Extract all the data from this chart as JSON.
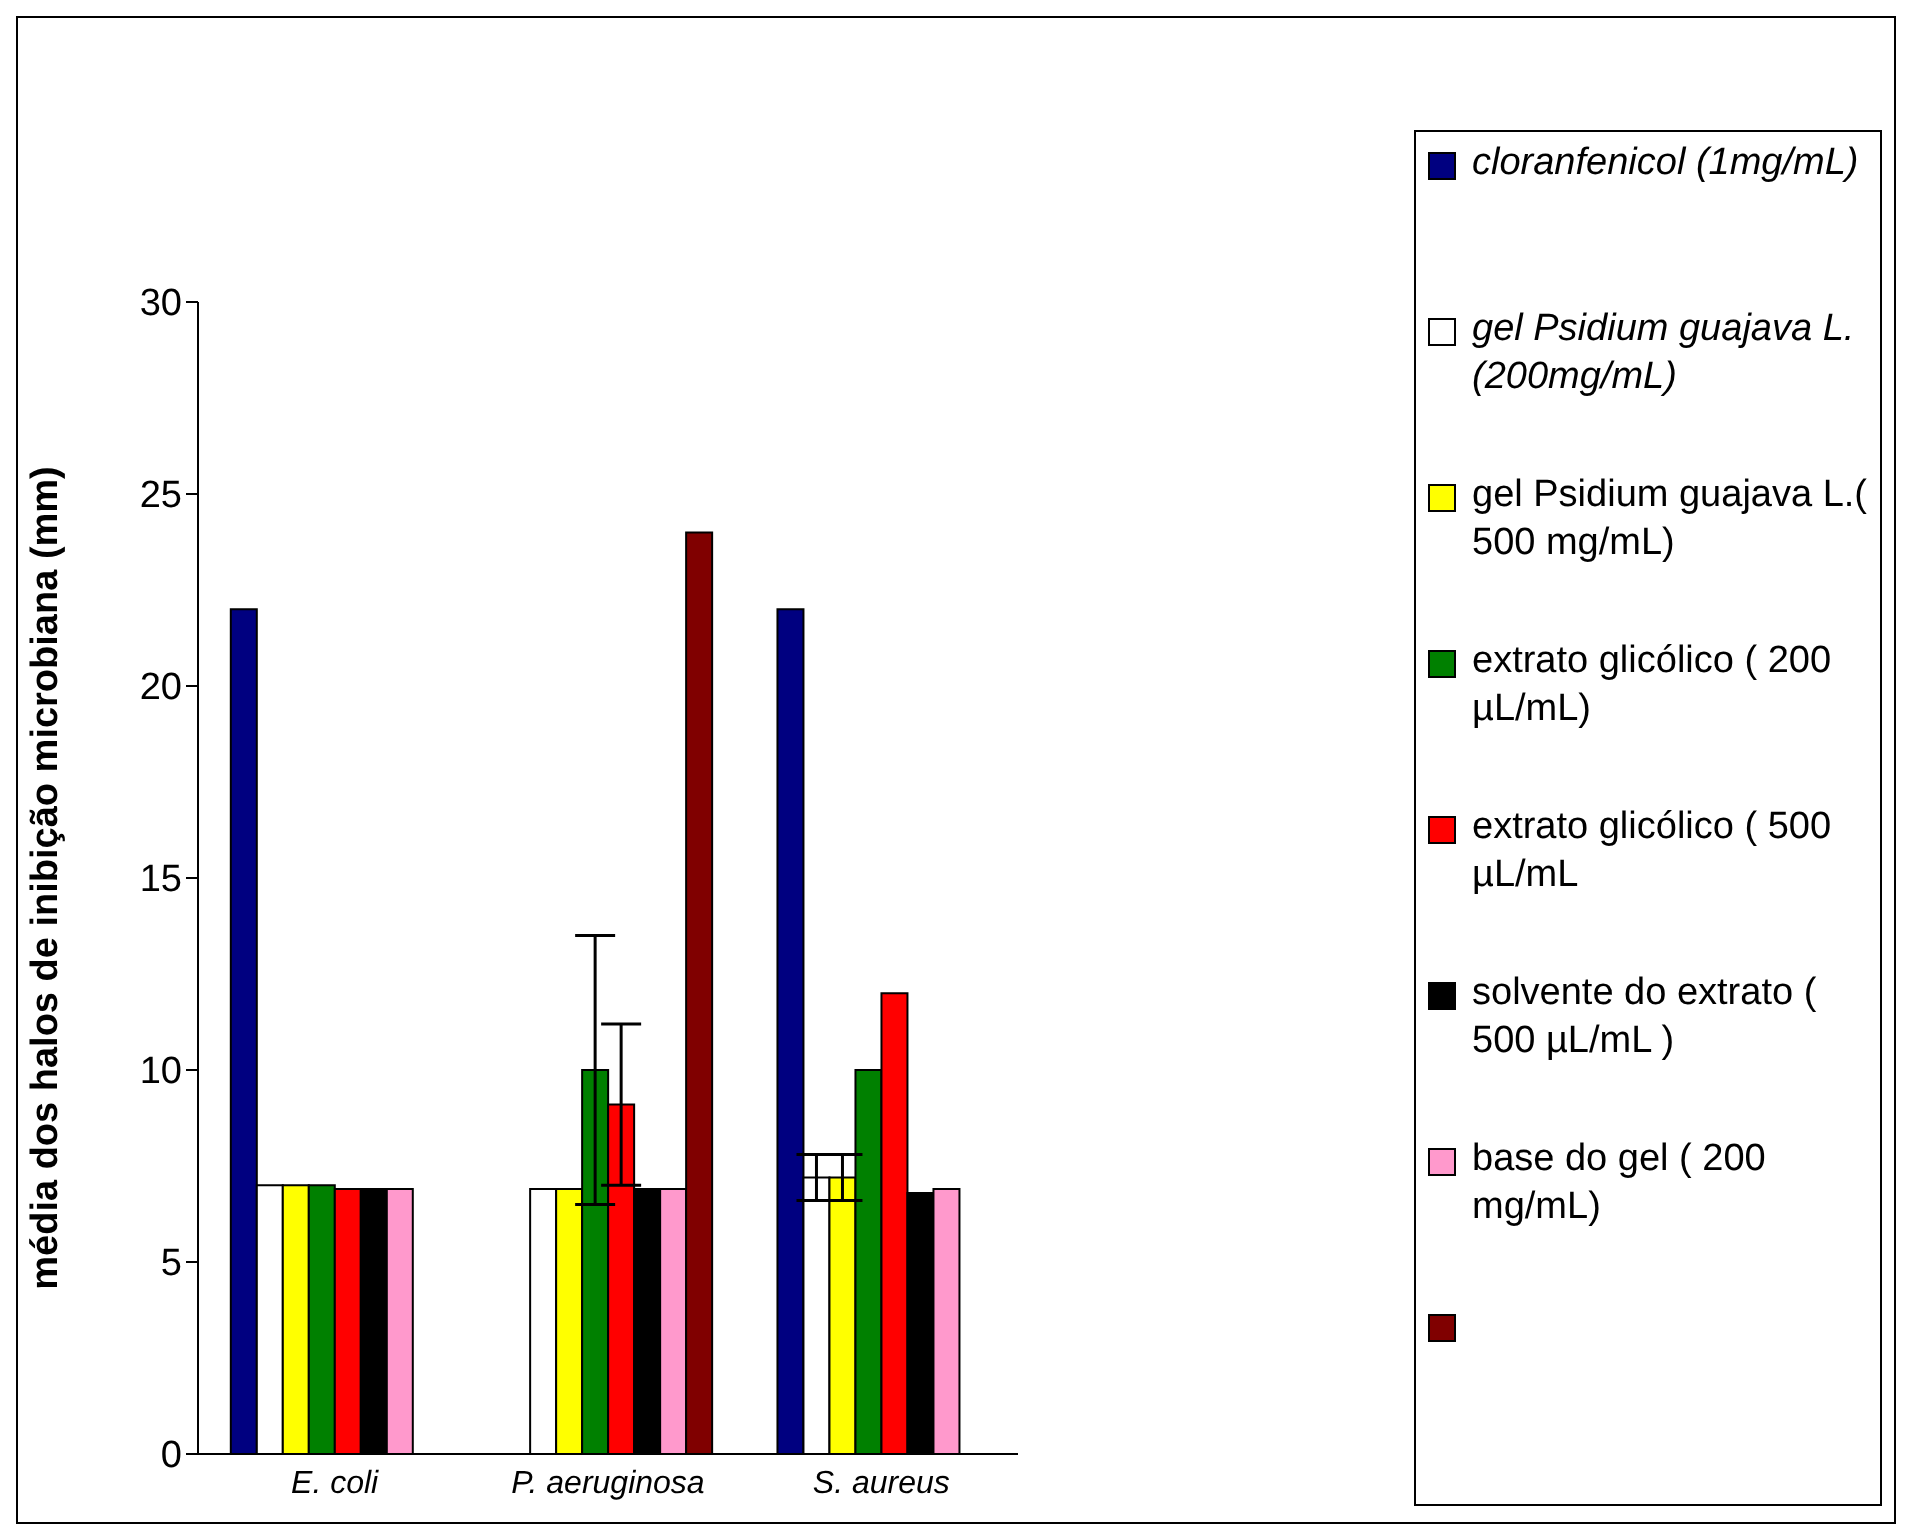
{
  "chart_data": {
    "type": "bar",
    "ylabel": "média dos halos de inibição microbiana (mm)",
    "categories": [
      "E. coli",
      "P. aeruginosa",
      "S. aureus"
    ],
    "ylim": [
      0,
      30
    ],
    "yticks": [
      0,
      5,
      10,
      15,
      20,
      25,
      30
    ],
    "grid": false,
    "legend": "right",
    "series": [
      {
        "name": "cloranfenicol (1mg/mL)",
        "color": "#000080",
        "values": [
          22,
          null,
          22
        ]
      },
      {
        "name": "gel Psidium guajava L. (200mg/mL)",
        "color": "#ffffff",
        "values": [
          7,
          6.9,
          7.2
        ],
        "errors": [
          null,
          null,
          0.6
        ]
      },
      {
        "name": "gel Psidium guajava L.( 500 mg/mL)",
        "color": "#ffff00",
        "values": [
          7,
          6.9,
          7.2
        ],
        "errors": [
          null,
          null,
          0.6
        ]
      },
      {
        "name": "extrato glicólico ( 200 µL/mL)",
        "color": "#008000",
        "values": [
          7,
          10,
          10
        ],
        "errors": [
          null,
          3.5,
          null
        ]
      },
      {
        "name": "extrato glicólico ( 500 µL/mL",
        "color": "#ff0000",
        "values": [
          6.9,
          9.1,
          12
        ],
        "errors": [
          null,
          2.1,
          null
        ]
      },
      {
        "name": "solvente do extrato ( 500 µL/mL )",
        "color": "#000000",
        "values": [
          6.9,
          6.9,
          6.8
        ]
      },
      {
        "name": "base do gel ( 200 mg/mL)",
        "color": "#ff99cc",
        "values": [
          6.9,
          6.9,
          6.9
        ]
      },
      {
        "color": "#800000",
        "values": [
          null,
          24,
          null
        ]
      }
    ]
  }
}
